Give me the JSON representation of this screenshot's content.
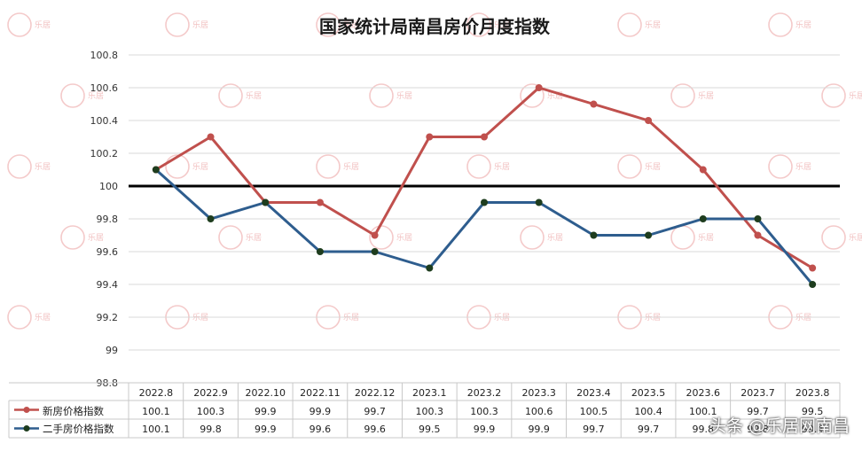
{
  "chart_data": {
    "type": "line",
    "title": "国家统计局南昌房价月度指数",
    "categories": [
      "2022.8",
      "2022.9",
      "2022.10",
      "2022.11",
      "2022.12",
      "2023.1",
      "2023.2",
      "2023.3",
      "2023.4",
      "2023.5",
      "2023.6",
      "2023.7",
      "2023.8"
    ],
    "series": [
      {
        "name": "新房价格指数",
        "color": "#c0504d",
        "values": [
          100.1,
          100.3,
          99.9,
          99.9,
          99.7,
          100.3,
          100.3,
          100.6,
          100.5,
          100.4,
          100.1,
          99.7,
          99.5
        ],
        "labels": [
          "100.1",
          "100.3",
          "99.9",
          "99.9",
          "99.7",
          "100.3",
          "100.3",
          "100.6",
          "100.5",
          "100.4",
          "100.1",
          "99.7",
          "99.5"
        ]
      },
      {
        "name": "二手房价格指数",
        "color": "#2e5d8e",
        "values": [
          100.1,
          99.8,
          99.9,
          99.6,
          99.6,
          99.5,
          99.9,
          99.9,
          99.7,
          99.7,
          99.8,
          99.8,
          99.4
        ],
        "labels": [
          "100.1",
          "99.8",
          "99.9",
          "99.6",
          "99.6",
          "99.5",
          "99.9",
          "99.9",
          "99.7",
          "99.7",
          "99.8",
          "99.8",
          "99.4"
        ]
      }
    ],
    "yticks": [
      "100.8",
      "100.6",
      "100.4",
      "100.2",
      "100",
      "99.8",
      "99.6",
      "99.4",
      "99.2",
      "99",
      "98.8"
    ],
    "ylim": [
      98.8,
      100.8
    ],
    "reference_line": 100,
    "grid": true,
    "legend": "data-table"
  },
  "watermark": "乐居",
  "credit": "头条 @乐居网南昌"
}
